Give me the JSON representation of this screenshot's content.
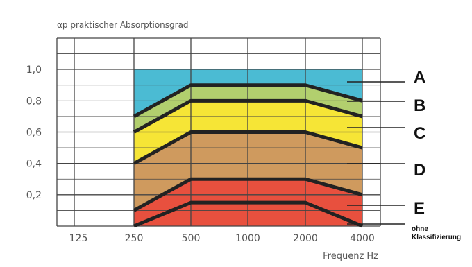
{
  "chart_data": {
    "type": "area",
    "ylabel": "αp praktischer Absorptionsgrad",
    "xlabel": "Frequenz Hz",
    "x_ticks": [
      "125",
      "250",
      "500",
      "1000",
      "2000",
      "4000"
    ],
    "y_ticks": [
      "0,2",
      "0,4",
      "0,6",
      "0,8",
      "1,0"
    ],
    "ylim": [
      0,
      1.2
    ],
    "grid": true,
    "x": [
      "250",
      "500",
      "1000",
      "2000",
      "4000"
    ],
    "series": [
      {
        "name": "A",
        "values": [
          0.7,
          0.9,
          0.9,
          0.9,
          0.8
        ],
        "color": "#4bbbd3"
      },
      {
        "name": "B",
        "values": [
          0.6,
          0.8,
          0.8,
          0.8,
          0.7
        ],
        "color": "#b2cf6e"
      },
      {
        "name": "C",
        "values": [
          0.4,
          0.6,
          0.6,
          0.6,
          0.5
        ],
        "color": "#f6e536"
      },
      {
        "name": "D",
        "values": [
          0.1,
          0.3,
          0.3,
          0.3,
          0.2
        ],
        "color": "#cf9a5e"
      },
      {
        "name": "E",
        "values": [
          0.0,
          0.15,
          0.15,
          0.15,
          0.0
        ],
        "color": "#e8503e"
      }
    ],
    "floor_label_lines": [
      "ohne",
      "Klassifizierung"
    ],
    "line_color": "#222222",
    "grid_color": "#444444"
  }
}
